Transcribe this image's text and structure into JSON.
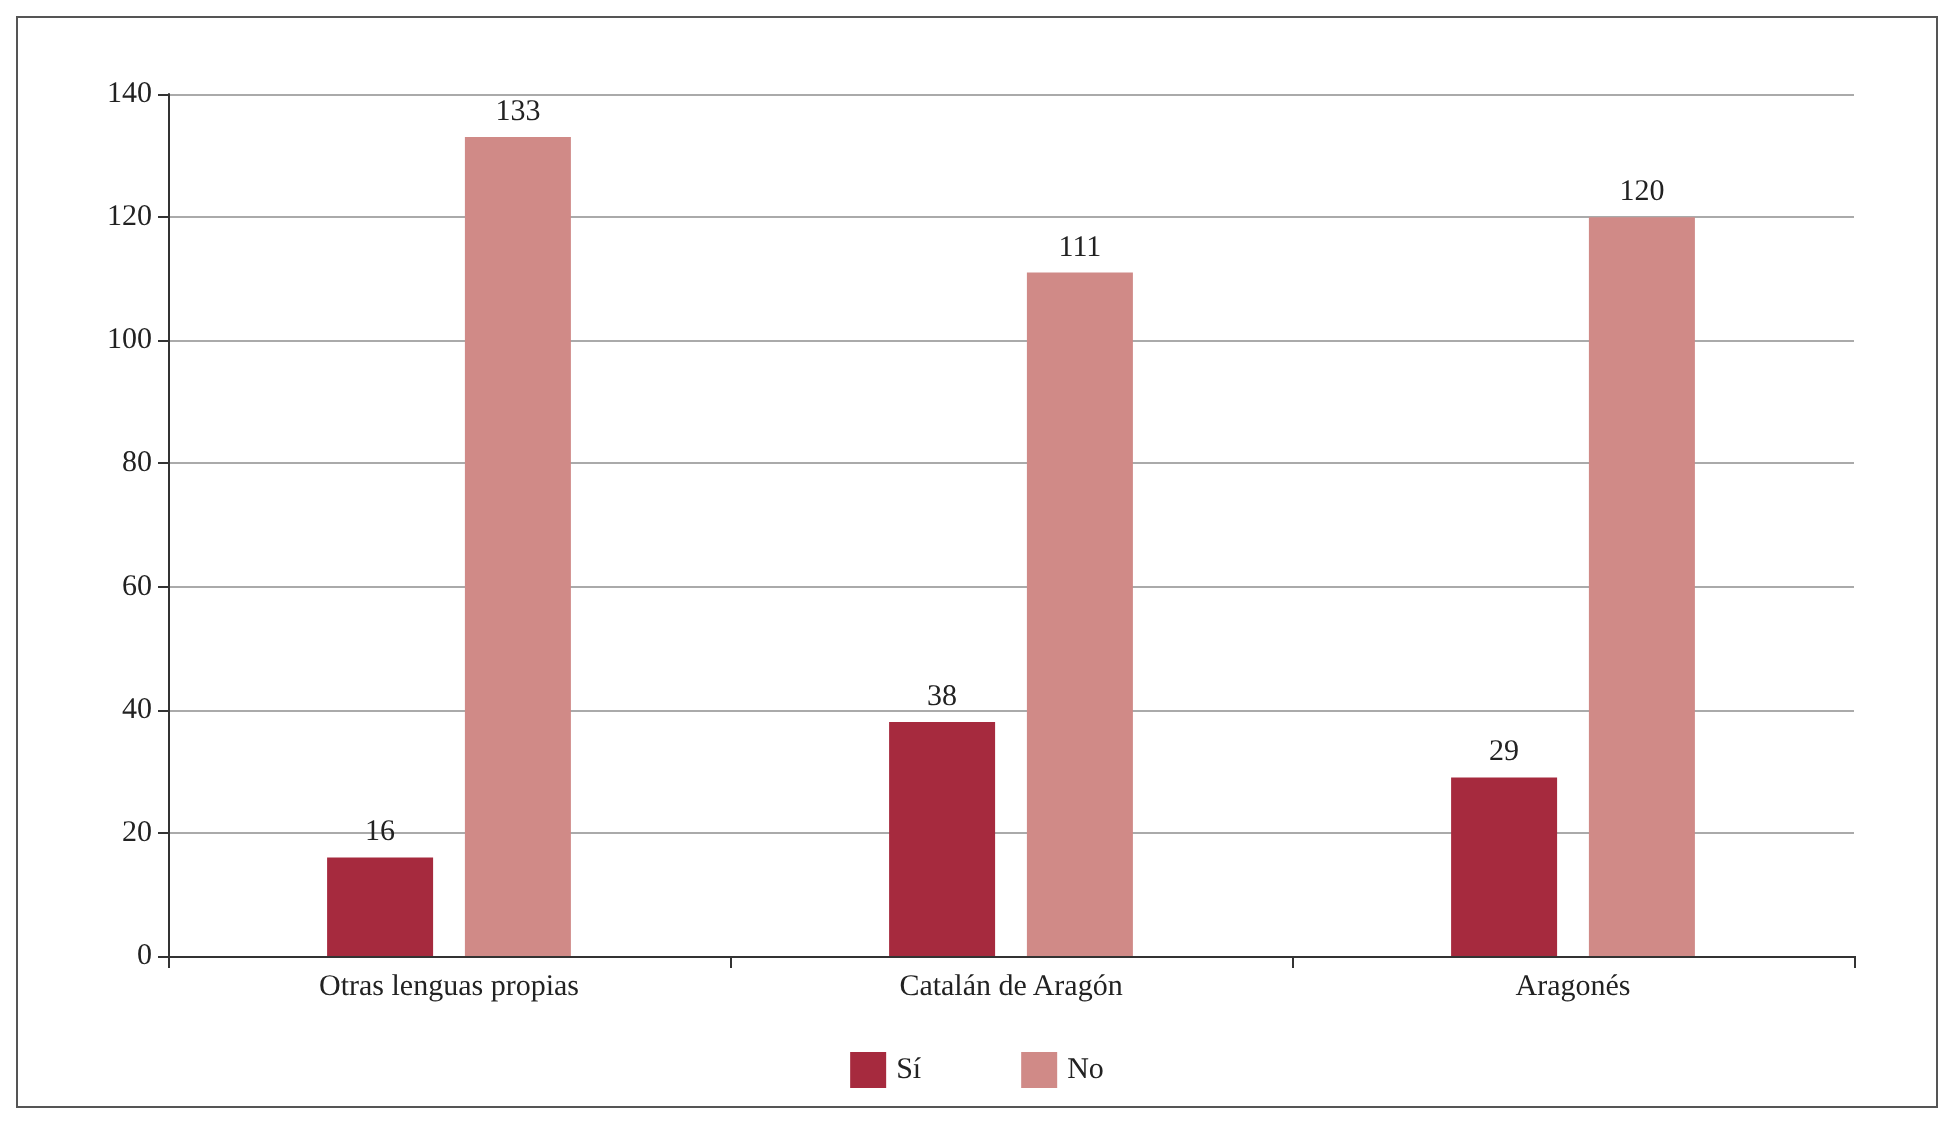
{
  "chart_data": {
    "type": "bar",
    "categories": [
      "Otras lenguas propias",
      "Catalán de Aragón",
      "Aragonés"
    ],
    "series": [
      {
        "name": "Sí",
        "color": "#a62a3e",
        "values": [
          16,
          38,
          29
        ]
      },
      {
        "name": "No",
        "color": "#d08a87",
        "values": [
          133,
          111,
          120
        ]
      }
    ],
    "ylim": [
      0,
      140
    ],
    "yticks": [
      0,
      20,
      40,
      60,
      80,
      100,
      120,
      140
    ],
    "grid": "y",
    "legend": "bottom",
    "data_labels": true
  }
}
